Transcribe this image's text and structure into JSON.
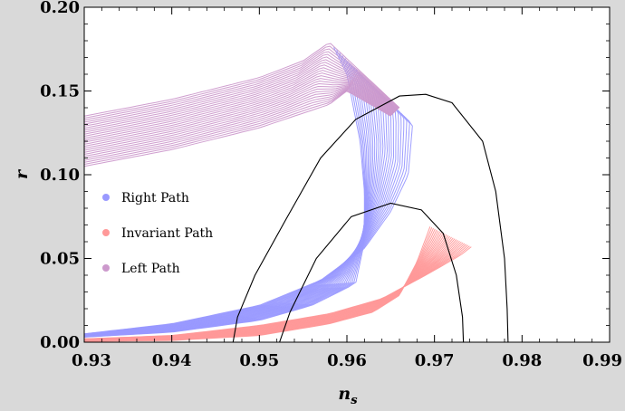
{
  "chart_data": {
    "type": "area",
    "title": "",
    "xlabel": "n",
    "xlabel_subscript": "s",
    "ylabel": "r",
    "xlim": [
      0.93,
      0.99
    ],
    "ylim": [
      0.0,
      0.2
    ],
    "x_ticks": [
      "0.93",
      "0.94",
      "0.95",
      "0.96",
      "0.97",
      "0.98",
      "0.99"
    ],
    "y_ticks": [
      "0.00",
      "0.05",
      "0.10",
      "0.15",
      "0.20"
    ],
    "grid": false,
    "legend_placement": "left-middle",
    "background_color": "#d9d9d9",
    "series": [
      {
        "name": "Right Path",
        "color": "#9999ff",
        "band_outer": [
          [
            0.93,
            0.005
          ],
          [
            0.94,
            0.011
          ],
          [
            0.95,
            0.022
          ],
          [
            0.957,
            0.037
          ],
          [
            0.962,
            0.056
          ],
          [
            0.965,
            0.078
          ],
          [
            0.967,
            0.1
          ],
          [
            0.9675,
            0.13
          ],
          [
            0.9665,
            0.135
          ]
        ],
        "band_inner": [
          [
            0.93,
            0.003
          ],
          [
            0.94,
            0.006
          ],
          [
            0.95,
            0.013
          ],
          [
            0.956,
            0.022
          ],
          [
            0.961,
            0.035
          ],
          [
            0.962,
            0.06
          ],
          [
            0.962,
            0.09
          ],
          [
            0.9615,
            0.12
          ],
          [
            0.96,
            0.16
          ],
          [
            0.9585,
            0.176
          ]
        ]
      },
      {
        "name": "Invariant Path",
        "color": "#ff9999",
        "band_outer": [
          [
            0.93,
            0.002
          ],
          [
            0.94,
            0.004
          ],
          [
            0.95,
            0.01
          ],
          [
            0.958,
            0.017
          ],
          [
            0.964,
            0.026
          ],
          [
            0.969,
            0.04
          ],
          [
            0.973,
            0.052
          ],
          [
            0.9742,
            0.057
          ]
        ],
        "band_inner": [
          [
            0.93,
            0.0005
          ],
          [
            0.94,
            0.001
          ],
          [
            0.95,
            0.004
          ],
          [
            0.958,
            0.011
          ],
          [
            0.963,
            0.018
          ],
          [
            0.966,
            0.028
          ],
          [
            0.968,
            0.048
          ],
          [
            0.9695,
            0.069
          ]
        ]
      },
      {
        "name": "Left Path",
        "color": "#cc99cc",
        "band_upper": [
          [
            0.93,
            0.135
          ],
          [
            0.94,
            0.145
          ],
          [
            0.95,
            0.158
          ],
          [
            0.955,
            0.168
          ],
          [
            0.958,
            0.179
          ],
          [
            0.966,
            0.14
          ]
        ],
        "band_lower": [
          [
            0.93,
            0.105
          ],
          [
            0.94,
            0.115
          ],
          [
            0.95,
            0.128
          ],
          [
            0.958,
            0.142
          ],
          [
            0.96,
            0.15
          ],
          [
            0.965,
            0.135
          ]
        ]
      }
    ],
    "contours": [
      {
        "name": "",
        "color": "#000000",
        "points": [
          [
            0.947,
            0.0
          ],
          [
            0.9475,
            0.015
          ],
          [
            0.9495,
            0.04
          ],
          [
            0.953,
            0.073
          ],
          [
            0.957,
            0.11
          ],
          [
            0.961,
            0.133
          ],
          [
            0.966,
            0.147
          ],
          [
            0.969,
            0.148
          ],
          [
            0.972,
            0.143
          ],
          [
            0.9755,
            0.12
          ],
          [
            0.977,
            0.09
          ],
          [
            0.978,
            0.05
          ],
          [
            0.9783,
            0.02
          ],
          [
            0.9784,
            0.0
          ]
        ]
      },
      {
        "name": "",
        "color": "#000000",
        "points": [
          [
            0.9523,
            0.0
          ],
          [
            0.9535,
            0.018
          ],
          [
            0.9565,
            0.05
          ],
          [
            0.9605,
            0.075
          ],
          [
            0.965,
            0.083
          ],
          [
            0.9685,
            0.079
          ],
          [
            0.971,
            0.065
          ],
          [
            0.9725,
            0.04
          ],
          [
            0.9732,
            0.015
          ],
          [
            0.9733,
            0.0
          ]
        ]
      }
    ]
  }
}
